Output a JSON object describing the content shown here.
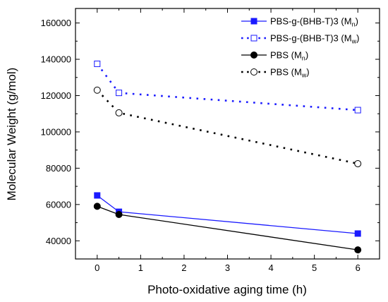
{
  "chart_data": {
    "type": "line",
    "xlabel": "Photo-oxidative aging time (h)",
    "ylabel": "Molecular Weight (g/mol)",
    "xlim": [
      -0.5,
      6.5
    ],
    "ylim": [
      30000,
      168000
    ],
    "xticks": [
      0,
      1,
      2,
      3,
      4,
      5,
      6
    ],
    "yticks": [
      40000,
      60000,
      80000,
      100000,
      120000,
      140000,
      160000
    ],
    "grid": false,
    "legend_position": "top-right",
    "series": [
      {
        "name": "PBS-g-(BHB-T)3 (Mn)",
        "legend_main": "PBS-g-(BHB-T)3 (M",
        "legend_sub": "n",
        "legend_end": ")",
        "color": "#1a1aff",
        "line": "solid",
        "marker": "square-filled",
        "x": [
          0,
          0.5,
          6
        ],
        "y": [
          65000,
          56000,
          44000
        ]
      },
      {
        "name": "PBS-g-(BHB-T)3 (Mw)",
        "legend_main": "PBS-g-(BHB-T)3 (M",
        "legend_sub": "w",
        "legend_end": ")",
        "color": "#1a1aff",
        "line": "dotted",
        "marker": "square-open",
        "x": [
          0,
          0.5,
          6
        ],
        "y": [
          137500,
          121500,
          112000
        ]
      },
      {
        "name": "PBS (Mn)",
        "legend_main": "PBS (M",
        "legend_sub": "n",
        "legend_end": ")",
        "color": "#000000",
        "line": "solid",
        "marker": "circle-filled",
        "x": [
          0,
          0.5,
          6
        ],
        "y": [
          59000,
          54500,
          35000
        ]
      },
      {
        "name": "PBS (Mw)",
        "legend_main": "PBS (M",
        "legend_sub": "w",
        "legend_end": ")",
        "color": "#000000",
        "line": "dotted",
        "marker": "circle-open",
        "x": [
          0,
          0.5,
          6
        ],
        "y": [
          123000,
          110500,
          82500
        ]
      }
    ]
  }
}
